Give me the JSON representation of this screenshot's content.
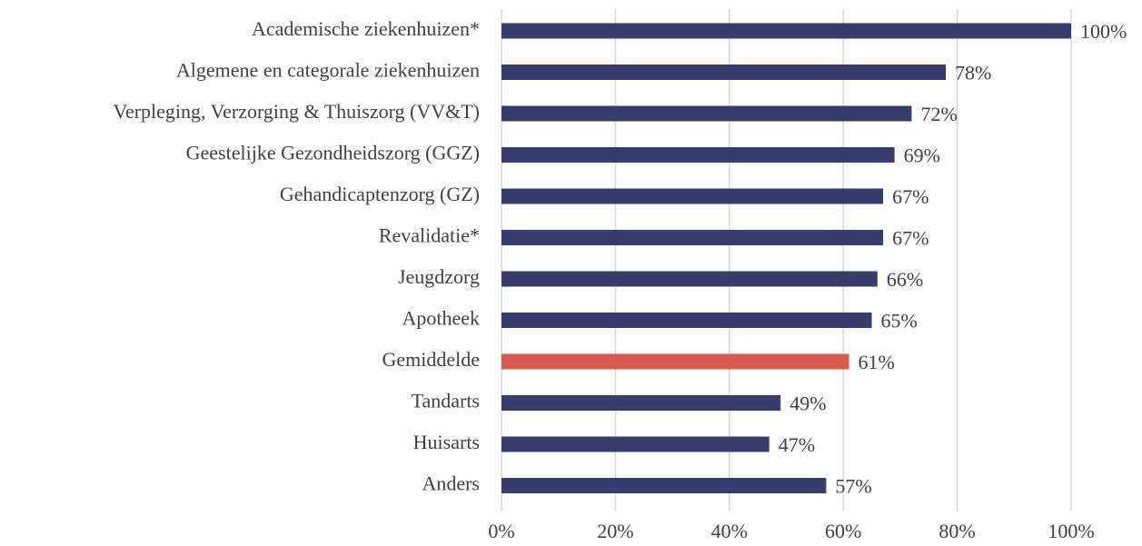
{
  "chart_data": {
    "type": "barh",
    "categories": [
      "Academische ziekenhuizen*",
      "Algemene en categorale ziekenhuizen",
      "Verpleging, Verzorging & Thuiszorg (VV&T)",
      "Geestelijke Gezondheidszorg (GGZ)",
      "Gehandicaptenzorg (GZ)",
      "Revalidatie*",
      "Jeugdzorg",
      "Apotheek",
      "Gemiddelde",
      "Tandarts",
      "Huisarts",
      "Anders"
    ],
    "values": [
      100,
      78,
      72,
      69,
      67,
      67,
      66,
      65,
      61,
      49,
      47,
      57
    ],
    "value_labels": [
      "100%",
      "78%",
      "72%",
      "69%",
      "67%",
      "67%",
      "66%",
      "65%",
      "61%",
      "49%",
      "47%",
      "57%"
    ],
    "colors": [
      "#363d6b",
      "#363d6b",
      "#363d6b",
      "#363d6b",
      "#363d6b",
      "#363d6b",
      "#363d6b",
      "#363d6b",
      "#d95b50",
      "#363d6b",
      "#363d6b",
      "#363d6b"
    ],
    "xlim": [
      0,
      100
    ],
    "xticks": [
      {
        "value": 0,
        "label": "0%"
      },
      {
        "value": 20,
        "label": "20%"
      },
      {
        "value": 40,
        "label": "40%"
      },
      {
        "value": 60,
        "label": "60%"
      },
      {
        "value": 80,
        "label": "80%"
      },
      {
        "value": 100,
        "label": "100%"
      }
    ],
    "grid": true
  }
}
